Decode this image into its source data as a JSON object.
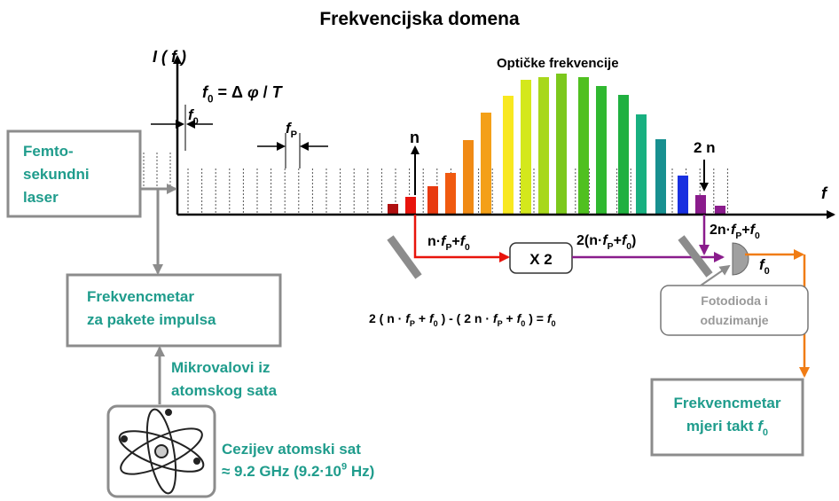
{
  "title": "Frekvencijska domena",
  "y_axis_label": "I ( f )",
  "x_axis_label": "f",
  "optical_label": "Optičke frekvencije",
  "offset_formula": [
    {
      "text": "f",
      "italic": true
    },
    {
      "text": "0",
      "sub": true
    },
    {
      "text": " = Δ "
    },
    {
      "text": "φ",
      "italic": true
    },
    {
      "text": " / "
    },
    {
      "text": "T",
      "italic": true
    }
  ],
  "offset_label": [
    {
      "text": "f",
      "italic": true
    },
    {
      "text": "0",
      "sub": true
    }
  ],
  "spacing_label": [
    {
      "text": "f",
      "italic": true
    },
    {
      "text": "P",
      "sub": true
    }
  ],
  "mode_n": "n",
  "mode_2n": "2 n",
  "beam_n": [
    {
      "text": "n·"
    },
    {
      "text": "f",
      "italic": true
    },
    {
      "text": "P",
      "sub": true
    },
    {
      "text": "+"
    },
    {
      "text": "f",
      "italic": true
    },
    {
      "text": "0",
      "sub": true
    }
  ],
  "doubler": "X 2",
  "beam_doubled": [
    {
      "text": "2(n·"
    },
    {
      "text": "f",
      "italic": true
    },
    {
      "text": "P",
      "sub": true
    },
    {
      "text": "+"
    },
    {
      "text": "f",
      "italic": true
    },
    {
      "text": "0",
      "sub": true
    },
    {
      "text": ")"
    }
  ],
  "beam_2n": [
    {
      "text": "2n·"
    },
    {
      "text": "f",
      "italic": true
    },
    {
      "text": "P",
      "sub": true
    },
    {
      "text": "+"
    },
    {
      "text": "f",
      "italic": true
    },
    {
      "text": "0",
      "sub": true
    }
  ],
  "beat": [
    {
      "text": "f",
      "italic": true
    },
    {
      "text": "0",
      "sub": true
    }
  ],
  "photodiode": [
    "Fotodioda i",
    "oduzimanje"
  ],
  "equation": [
    {
      "text": "2 ( n · "
    },
    {
      "text": "f",
      "italic": true
    },
    {
      "text": "P",
      "sub": true
    },
    {
      "text": " + "
    },
    {
      "text": "f",
      "italic": true
    },
    {
      "text": "0",
      "sub": true
    },
    {
      "text": " ) - ( 2 n · "
    },
    {
      "text": "f",
      "italic": true
    },
    {
      "text": "P",
      "sub": true
    },
    {
      "text": " + "
    },
    {
      "text": "f",
      "italic": true
    },
    {
      "text": "0",
      "sub": true
    },
    {
      "text": " ) = "
    },
    {
      "text": "f",
      "italic": true
    },
    {
      "text": "0",
      "sub": true
    }
  ],
  "laser": [
    "Femto-",
    "sekundni",
    "laser"
  ],
  "pulse_counter": [
    "Frekvencmetar",
    "za pakete impulsa"
  ],
  "microwaves": [
    "Mikrovalovi iz",
    "atomskog sata"
  ],
  "clock": [
    [
      {
        "text": "Cezijev atomski sat"
      }
    ],
    [
      {
        "text": "≈ 9.2 GHz (9.2·10"
      },
      {
        "text": "9",
        "sup": true
      },
      {
        "text": " Hz)"
      }
    ]
  ],
  "counter": [
    [
      {
        "text": "Frekvencmetar"
      }
    ],
    [
      {
        "text": "mjeri takt "
      },
      {
        "text": "f",
        "italic": true
      },
      {
        "text": "0",
        "sub": true
      }
    ]
  ]
}
